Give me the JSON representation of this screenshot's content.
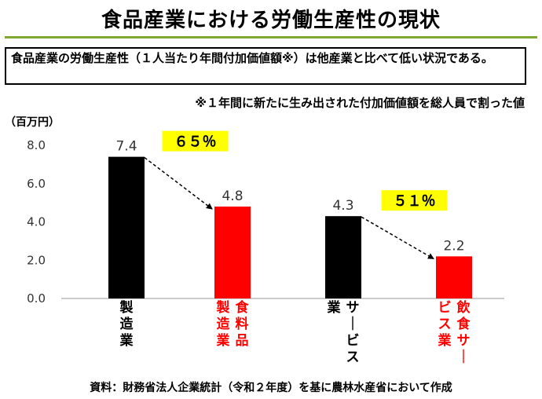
{
  "title": "食品産業における労働生産性の現状",
  "summary": "食品産業の労働生産性（１人当たり年間付加価値額※）は他産業と比べて低い状況である。",
  "footnote": "※１年間に新たに生み出された付加価値額を総人員で割った値",
  "unit_label": "（百万円）",
  "source": "資料：財務省法人企業統計（令和２年度）を基に農林水産省において作成",
  "colors": {
    "black_bar": "#000000",
    "red_bar": "#ff0000",
    "highlight": "#ffff00",
    "title_rule": "#7fa832"
  },
  "chart_data": {
    "type": "bar",
    "categories": [
      "製造業",
      "食料品製造業",
      "サービス業",
      "飲食サービス業"
    ],
    "category_label_columns": [
      [
        "製造業"
      ],
      [
        "製造業",
        "食料品"
      ],
      [
        "業",
        "サービス"
      ],
      [
        "ビス業",
        "飲食サー"
      ]
    ],
    "values": [
      7.4,
      4.8,
      4.3,
      2.2
    ],
    "value_labels": [
      "7.4",
      "4.8",
      "4.3",
      "2.2"
    ],
    "bar_colors": [
      "#000000",
      "#ff0000",
      "#000000",
      "#ff0000"
    ],
    "label_colors": [
      "#000000",
      "#ff0000",
      "#000000",
      "#ff0000"
    ],
    "ylim": [
      0,
      8
    ],
    "yticks": [
      "0.0",
      "2.0",
      "4.0",
      "6.0",
      "8.0"
    ],
    "ytick_values": [
      0,
      2,
      4,
      6,
      8
    ],
    "annotations": [
      {
        "text": "６５％",
        "from": 0,
        "to": 1
      },
      {
        "text": "５１％",
        "from": 2,
        "to": 3
      }
    ]
  }
}
